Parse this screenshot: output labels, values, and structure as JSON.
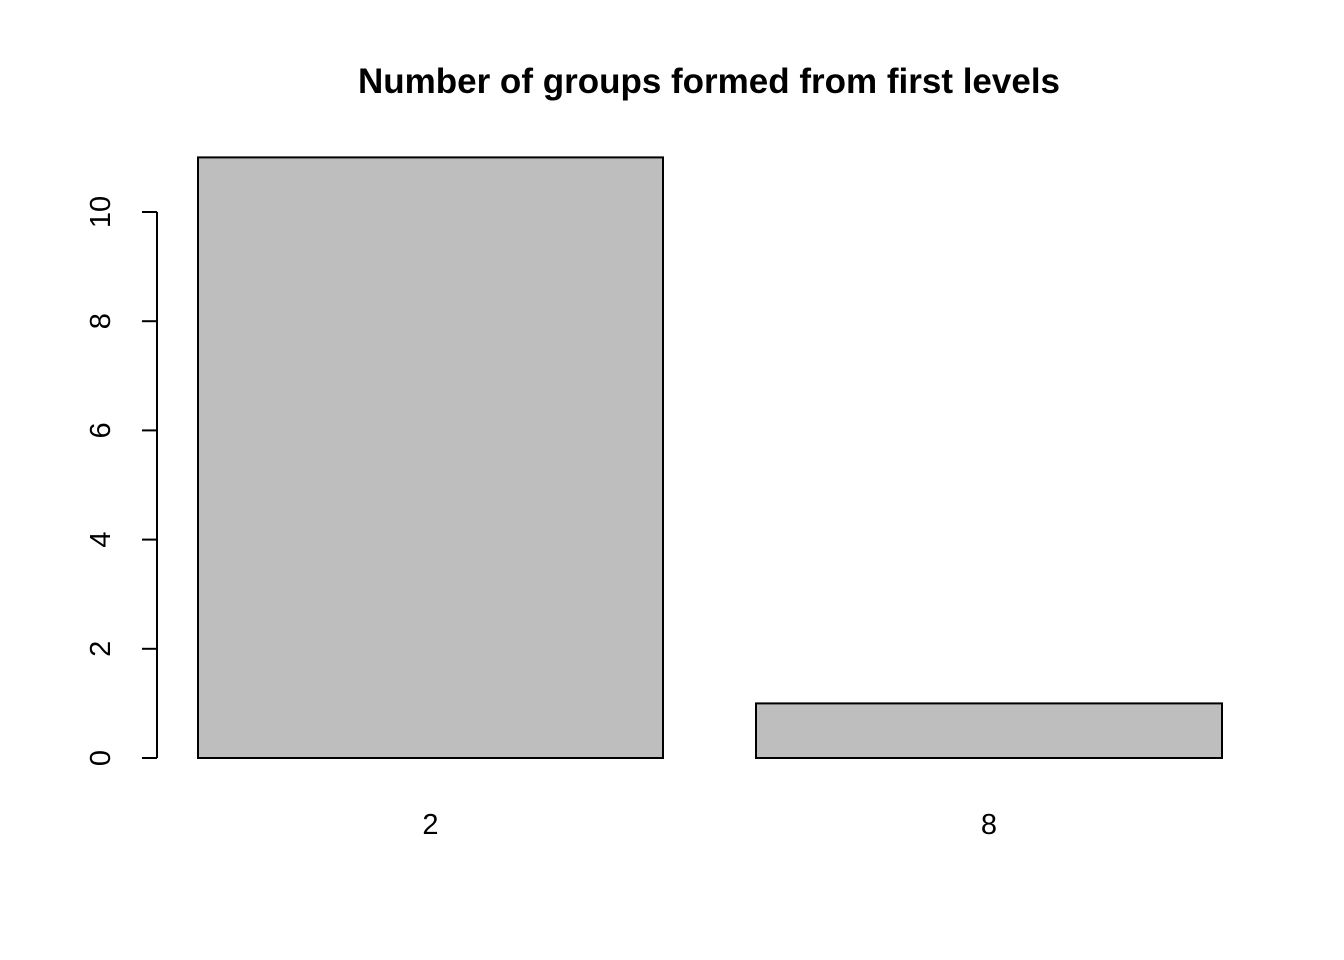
{
  "chart_data": {
    "type": "bar",
    "title": "Number of groups formed from first levels",
    "xlabel": "",
    "ylabel": "",
    "categories": [
      "2",
      "8"
    ],
    "values": [
      11,
      1
    ],
    "ylim": [
      0,
      11
    ],
    "yticks": [
      0,
      2,
      4,
      6,
      8,
      10
    ],
    "grid": false,
    "legend": "none",
    "bar_color": "#bebebe",
    "bar_border_color": "#000000"
  }
}
